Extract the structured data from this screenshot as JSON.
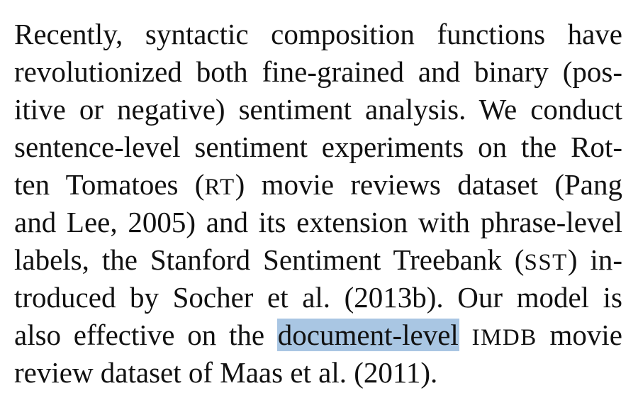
{
  "paragraph": {
    "line1": "Recently, syntactic composition functions have",
    "line2": "revolutionized both fine-grained and binary (pos-",
    "line3": "itive or negative) sentiment analysis. We conduct",
    "line4": "sentence-level sentiment experiments on the Rot-",
    "line5_a": "ten Tomatoes (",
    "line5_abbr": "RT",
    "line5_b": ") movie reviews dataset (Pang",
    "line6": "and Lee, 2005) and its extension with phrase-level",
    "line7_a": "labels, the Stanford Sentiment Treebank (",
    "line7_abbr": "SST",
    "line7_b": ") in-",
    "line8": "troduced by Socher et al. (2013b). Our model is",
    "line9_a": "also effective on the ",
    "line9_highlight": "document-level",
    "line9_space": " ",
    "line9_abbr": "IMDB",
    "line9_b": " movie",
    "line10": "review dataset of Maas et al. (2011)."
  },
  "colors": {
    "highlight": "#a9c6e3",
    "text": "#111111",
    "background": "#ffffff"
  }
}
